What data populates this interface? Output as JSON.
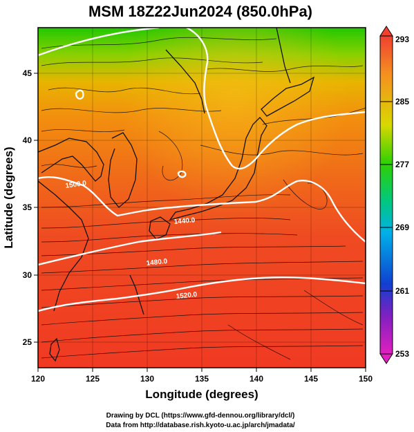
{
  "title": "MSM 18Z22Jun2024 (850.0hPa)",
  "x_axis": {
    "label": "Longitude (degrees)",
    "range": [
      120,
      150
    ],
    "ticks": [
      "120",
      "125",
      "130",
      "135",
      "140",
      "145",
      "150"
    ]
  },
  "y_axis": {
    "label": "Latitude  (degrees)",
    "range": [
      22.4,
      48
    ],
    "ticks": [
      "25",
      "30",
      "35",
      "40",
      "45"
    ]
  },
  "colorbar": {
    "range": [
      253,
      293
    ],
    "ticks": [
      "293",
      "285",
      "277",
      "269",
      "261",
      "253"
    ]
  },
  "contours": [
    {
      "label": "1500.0"
    },
    {
      "label": "1440.0"
    },
    {
      "label": "1480.0"
    },
    {
      "label": "1520.0"
    }
  ],
  "credits": {
    "line1": "Drawing by DCL (https://www.gfd-dennou.org/library/dcl/)",
    "line2": "Data from http://database.rish.kyoto-u.ac.jp/arch/jmadata/"
  }
}
